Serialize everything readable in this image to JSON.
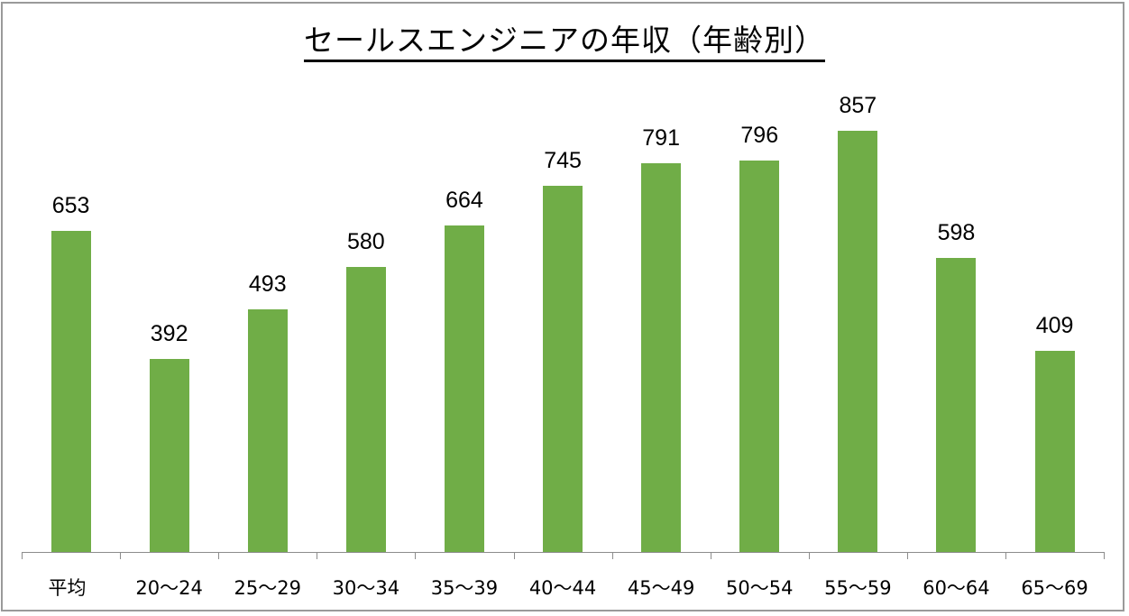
{
  "chart_data": {
    "type": "bar",
    "title": "セールスエンジニアの年収（年齢別）",
    "xlabel": "",
    "ylabel": "",
    "categories": [
      "平均",
      "20〜24",
      "25〜29",
      "30〜34",
      "35〜39",
      "40〜44",
      "45〜49",
      "50〜54",
      "55〜59",
      "60〜64",
      "65〜69"
    ],
    "values": [
      653,
      392,
      493,
      580,
      664,
      745,
      791,
      796,
      857,
      598,
      409
    ],
    "ylim": [
      0,
      1120
    ],
    "grid": false,
    "legend": "none",
    "data_labels": true,
    "bar_color": "#70ad47"
  },
  "title": "セールスエンジニアの年収（年齢別）",
  "labels": {
    "values": [
      "653",
      "392",
      "493",
      "580",
      "664",
      "745",
      "791",
      "796",
      "857",
      "598",
      "409"
    ],
    "categories": [
      "平均",
      "20〜24",
      "25〜29",
      "30〜34",
      "35〜39",
      "40〜44",
      "45〜49",
      "50〜54",
      "55〜59",
      "60〜64",
      "65〜69"
    ]
  }
}
